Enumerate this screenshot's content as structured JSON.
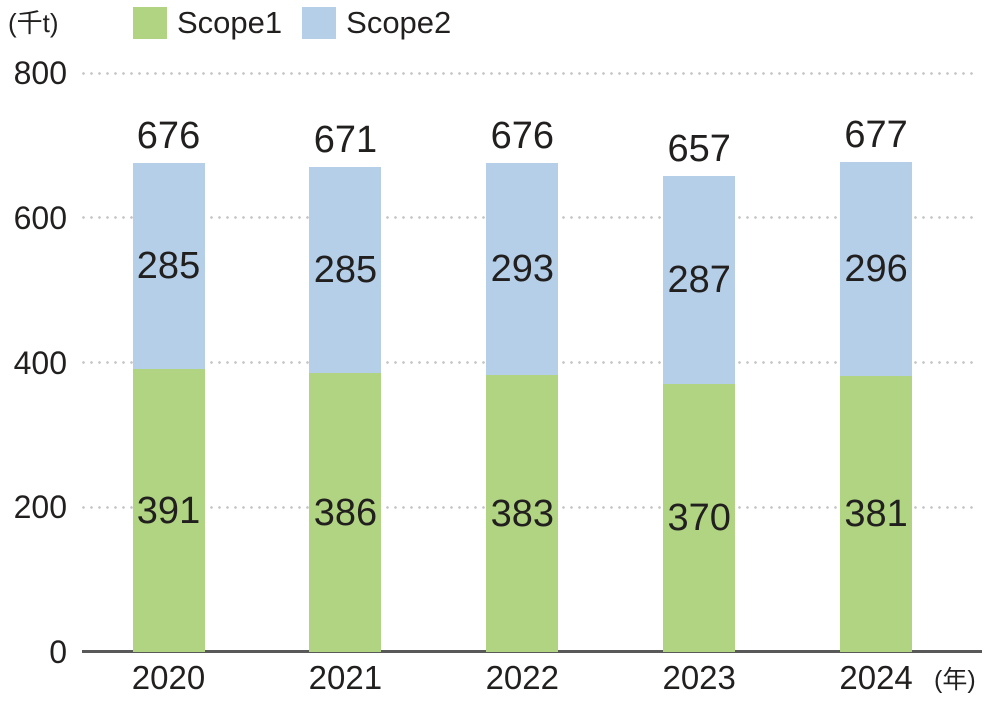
{
  "unit_label": "(千t)",
  "x_unit_label": "(年)",
  "colors": {
    "scope1": "#b0d482",
    "scope2": "#b5cfe9",
    "grid": "#c6c6c6",
    "axis": "#595959",
    "text": "#221f1f"
  },
  "chart_data": {
    "type": "bar",
    "stacked": true,
    "categories": [
      "2020",
      "2021",
      "2022",
      "2023",
      "2024"
    ],
    "series": [
      {
        "name": "Scope1",
        "color": "#b0d482",
        "values": [
          391,
          386,
          383,
          370,
          381
        ]
      },
      {
        "name": "Scope2",
        "color": "#b5cfe9",
        "values": [
          285,
          285,
          293,
          287,
          296
        ]
      }
    ],
    "totals": [
      676,
      671,
      676,
      657,
      677
    ],
    "ylabel": "(千t)",
    "xlabel": "(年)",
    "ylim": [
      0,
      800
    ],
    "yticks": [
      0,
      200,
      400,
      600,
      800
    ],
    "grid": "horizontal-dotted",
    "legend_position": "top-left"
  }
}
